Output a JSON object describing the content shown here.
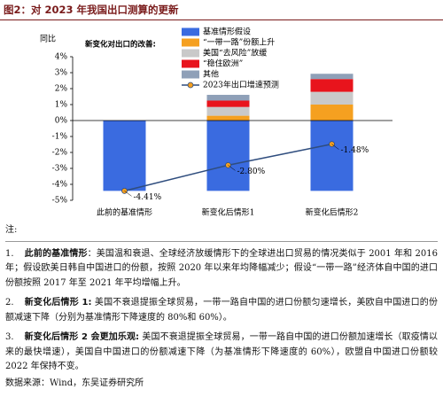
{
  "figure_title": "图2：对 2023 年我国出口测算的更新",
  "chart_data": {
    "type": "bar",
    "stacked": true,
    "y_label": "同比",
    "legend_title": "新变化对出口的改善:",
    "categories": [
      "此前的基准情形",
      "新变化后情形1",
      "新变化后情形2"
    ],
    "series": [
      {
        "name": "基准情形假设",
        "type": "bar",
        "color": "#3a6be0",
        "values": [
          -4.41,
          -4.41,
          -4.41
        ]
      },
      {
        "name": "“一带一路”份额上升",
        "type": "bar",
        "color": "#f5a020",
        "values": [
          0,
          0.3,
          1.0
        ]
      },
      {
        "name": "美国“去风险”放缓",
        "type": "bar",
        "color": "#c9c9c9",
        "values": [
          0,
          0.55,
          0.8
        ]
      },
      {
        "name": "“稳住欧洲”",
        "type": "bar",
        "color": "#e8141c",
        "values": [
          0,
          0.4,
          0.8
        ]
      },
      {
        "name": "其他",
        "type": "bar",
        "color": "#8fa0b8",
        "values": [
          0,
          0.36,
          0.33
        ]
      },
      {
        "name": "2023年出口增速预测",
        "type": "line",
        "color": "#2f4d7e",
        "marker_color": "#f5a020",
        "values": [
          -4.41,
          -2.8,
          -1.48
        ],
        "value_labels": [
          "-4.41%",
          "-2.80%",
          "-1.48%"
        ]
      }
    ],
    "ylim": [
      -5,
      4
    ],
    "yticks": [
      {
        "value": -5,
        "label": "-5%"
      },
      {
        "value": -4,
        "label": "-4%"
      },
      {
        "value": -3,
        "label": "-3%"
      },
      {
        "value": -2,
        "label": "-2%"
      },
      {
        "value": -1,
        "label": "-1%"
      },
      {
        "value": 0,
        "label": "0%"
      },
      {
        "value": 1,
        "label": "1%"
      },
      {
        "value": 2,
        "label": "2%"
      },
      {
        "value": 3,
        "label": "3%"
      },
      {
        "value": 4,
        "label": "4%"
      }
    ]
  },
  "notes": {
    "label": "注:",
    "items": [
      {
        "number": "1.",
        "title": "此前的基准情形",
        "text": "：美国温和衰退、全球经济放缓情形下的全球进出口贸易的情况类似于 2001 年和 2016 年；假设欧美日韩自中国进口的份额，按照 2020 年以来年均降幅减少；假设“一带一路”经济体自中国的进口份额按照 2017 年至 2021 年平均增幅上升。"
      },
      {
        "number": "2.",
        "title": "新变化后情形 1:",
        "text": " 美国不衰退提振全球贸易，一带一路自中国的进口份额匀速增长，美欧自中国进口的份额减速下降（分别为基准情形下降速度的 80%和 60%）。"
      },
      {
        "number": "3.",
        "title": "新变化后情形 2 会更加乐观:",
        "text": " 美国不衰退提振全球贸易，一带一路自中国的进口份额加速增长（取疫情以来的最快增速），美国自中国进口的份额减速下降（为基准情形下降速度的 60%），欧盟自中国进口份额较 2022 年保持不变。"
      }
    ],
    "source": "数据来源：Wind，东吴证券研究所"
  }
}
